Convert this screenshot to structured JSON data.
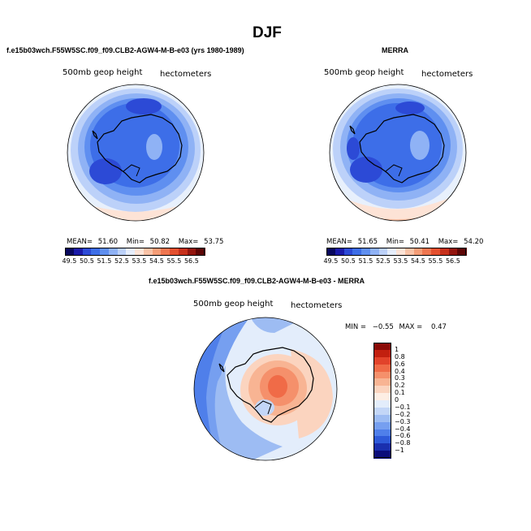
{
  "title": "DJF",
  "panels": {
    "model": {
      "title": "f.e15b03wch.F55W5SC.f09_f09.CLB2-AGW4-M-B-e03 (yrs 1980-1989)",
      "left_label": "500mb geop height",
      "right_label": "hectometers",
      "stats": {
        "mean_label": "MEAN=",
        "mean": "51.60",
        "min_label": "Min=",
        "min": "50.82",
        "max_label": "Max=",
        "max": "53.75"
      }
    },
    "obs": {
      "title": "MERRA",
      "left_label": "500mb geop height",
      "right_label": "hectometers",
      "stats": {
        "mean_label": "MEAN=",
        "mean": "51.65",
        "min_label": "Min=",
        "min": "50.41",
        "max_label": "Max=",
        "max": "54.20"
      }
    },
    "diff": {
      "title": "f.e15b03wch.F55W5SC.f09_f09.CLB2-AGW4-M-B-e03 - MERRA",
      "left_label": "500mb geop height",
      "right_label": "hectometers",
      "stats": {
        "min_label": "MIN =",
        "min": "−0.55",
        "max_label": "MAX =",
        "max": "0.47"
      }
    }
  },
  "colorbar_abs": {
    "ticks": [
      "49.5",
      "50.5",
      "51.5",
      "52.5",
      "53.5",
      "54.5",
      "55.5",
      "56.5"
    ],
    "colors": [
      "#08085e",
      "#1a1aa8",
      "#2c4ad6",
      "#3d6ee8",
      "#5f8ff0",
      "#8fb2f5",
      "#bcd1f9",
      "#e6eefc",
      "#fde3d6",
      "#f9c2a6",
      "#f59d77",
      "#ef7650",
      "#e4502f",
      "#c6301b",
      "#93150e",
      "#5e0505"
    ]
  },
  "colorbar_diff": {
    "ticks": [
      "1",
      "0.8",
      "0.6",
      "0.4",
      "0.3",
      "0.2",
      "0.1",
      "0",
      "−0.1",
      "−0.2",
      "−0.3",
      "−0.4",
      "−0.6",
      "−0.8",
      "−1"
    ],
    "colors": [
      "#8a0a06",
      "#c2200f",
      "#e2432a",
      "#f06b47",
      "#f5906b",
      "#f8b493",
      "#fbd4bf",
      "#fdeee4",
      "#e3edfb",
      "#c3d6f7",
      "#9dbcf3",
      "#769ff0",
      "#4f7fea",
      "#2e5ad9",
      "#1a2fae",
      "#0b0c7a"
    ]
  },
  "map_colors": {
    "ocean_light": "#e8f0fc",
    "band1": "#bcd1f9",
    "band2": "#8fb2f5",
    "band3": "#5f8ff0",
    "band4": "#3d6ee8",
    "band5": "#2c4ad6",
    "warm1": "#fde3d6",
    "warm2": "#f9c2a6"
  },
  "diff_colors": {
    "pos1": "#fbd4bf",
    "pos2": "#f8b493",
    "pos3": "#f5906b",
    "pos4": "#f06b47",
    "neg1": "#c3d6f7",
    "neg2": "#9dbcf3",
    "neg3": "#769ff0",
    "neg4": "#4f7fea"
  }
}
